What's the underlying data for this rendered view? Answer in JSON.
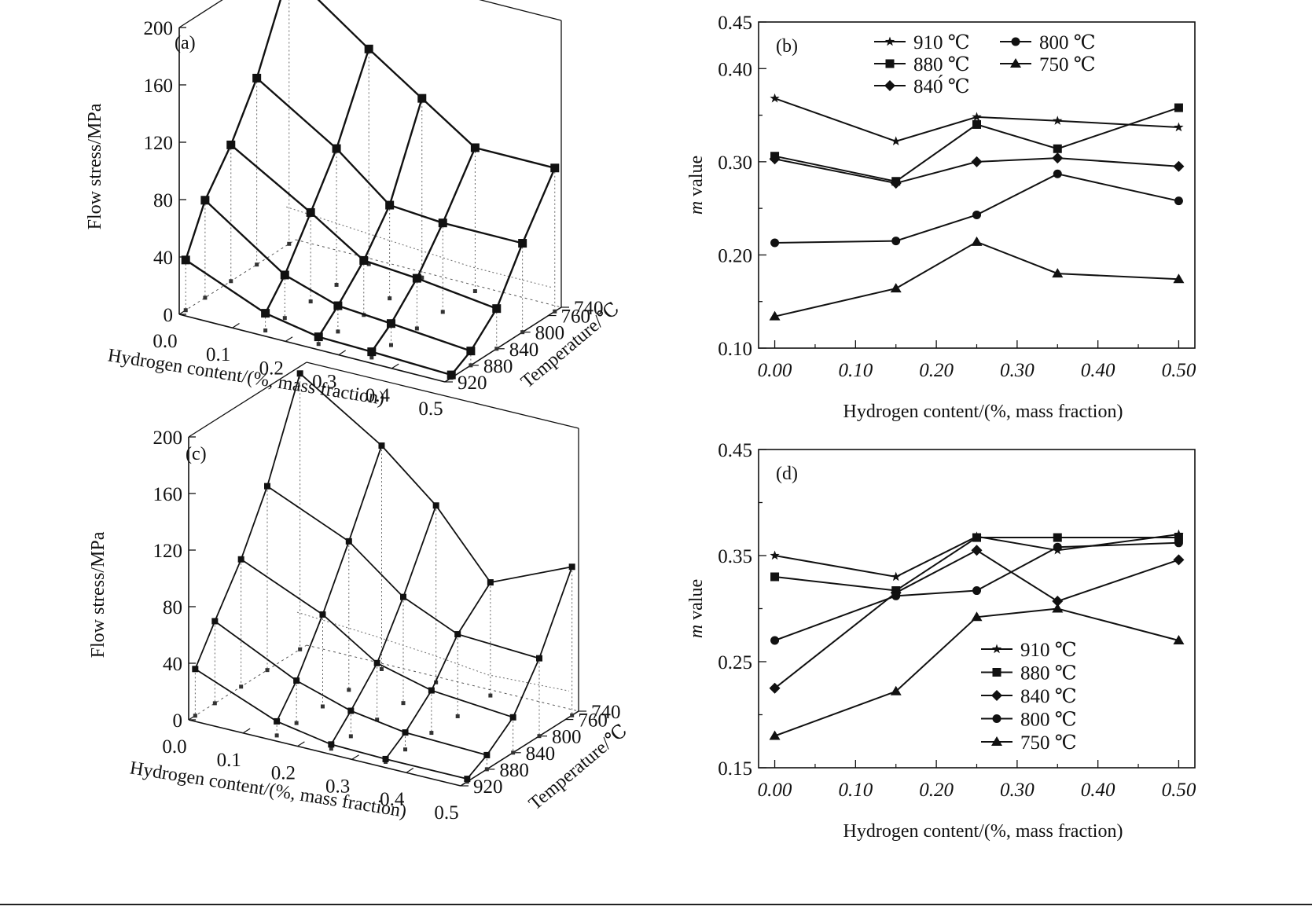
{
  "chart_data": [
    {
      "panel": "(a)",
      "type": "surface3d",
      "zlabel": "Flow stress/MPa",
      "xlabel": "Hydrogen content/(%, mass fraction)",
      "ylabel": "Temperature/℃",
      "x": [
        0,
        0.15,
        0.25,
        0.35,
        0.5
      ],
      "xticks": [
        "0.0",
        "0.1",
        "0.2",
        "0.3",
        "0.4",
        "0.5"
      ],
      "temperatures": [
        750,
        800,
        840,
        880,
        910
      ],
      "yticks": [
        "740",
        "760",
        "800",
        "840",
        "880",
        "920"
      ],
      "zticks": [
        "0",
        "40",
        "80",
        "120",
        "160",
        "200"
      ],
      "zlim": [
        0,
        200
      ],
      "z": [
        [
          190,
          150,
          125,
          100,
          100
        ],
        [
          130,
          95,
          65,
          62,
          62
        ],
        [
          95,
          62,
          38,
          35,
          28
        ],
        [
          68,
          30,
          18,
          15,
          10
        ],
        [
          35,
          12,
          5,
          4,
          2
        ]
      ]
    },
    {
      "panel": "(b)",
      "type": "line",
      "xlabel": "Hydrogen content/(%, mass fraction)",
      "ylabel": "m value",
      "x": [
        0.0,
        0.15,
        0.25,
        0.35,
        0.5
      ],
      "xlim": [
        -0.02,
        0.52
      ],
      "ylim": [
        0.1,
        0.45
      ],
      "xticks": [
        "0.00",
        "0.10",
        "0.20",
        "0.30",
        "0.40",
        "0.50"
      ],
      "yticks": [
        "0.10",
        "0.20",
        "0.30",
        "0.40",
        "0.45"
      ],
      "ytick_values": [
        0.1,
        0.2,
        0.3,
        0.4,
        0.45
      ],
      "legend": [
        {
          "label": "910 ℃",
          "marker": "star"
        },
        {
          "label": "800 ℃",
          "marker": "circle"
        },
        {
          "label": "880 ℃",
          "marker": "square"
        },
        {
          "label": "750 ℃",
          "marker": "triangle"
        },
        {
          "label": "840́ ℃",
          "marker": "diamond"
        }
      ],
      "series": [
        {
          "name": "910 ℃",
          "marker": "star",
          "values": [
            0.368,
            0.322,
            0.348,
            0.344,
            0.337
          ]
        },
        {
          "name": "880 ℃",
          "marker": "square",
          "values": [
            0.306,
            0.279,
            0.34,
            0.314,
            0.358
          ]
        },
        {
          "name": "840́ ℃",
          "marker": "diamond",
          "values": [
            0.303,
            0.277,
            0.3,
            0.304,
            0.295
          ]
        },
        {
          "name": "800 ℃",
          "marker": "circle",
          "values": [
            0.213,
            0.215,
            0.243,
            0.287,
            0.258
          ]
        },
        {
          "name": "750 ℃",
          "marker": "triangle",
          "values": [
            0.134,
            0.164,
            0.214,
            0.18,
            0.174
          ]
        }
      ]
    },
    {
      "panel": "(c)",
      "type": "surface3d",
      "zlabel": "Flow stress/MPa",
      "xlabel": "Hydrogen content/(%, mass fraction)",
      "ylabel": "Temperature/℃",
      "x": [
        0,
        0.15,
        0.25,
        0.35,
        0.5
      ],
      "xticks": [
        "0.0",
        "0.1",
        "0.2",
        "0.3",
        "0.4",
        "0.5"
      ],
      "temperatures": [
        750,
        800,
        840,
        880,
        910
      ],
      "yticks": [
        "740",
        "760",
        "800",
        "840",
        "880",
        "920"
      ],
      "zticks": [
        "0",
        "40",
        "80",
        "120",
        "160",
        "200"
      ],
      "zlim": [
        0,
        200
      ],
      "z": [
        [
          195,
          158,
          125,
          80,
          105
        ],
        [
          130,
          105,
          75,
          58,
          55
        ],
        [
          90,
          65,
          40,
          30,
          25
        ],
        [
          58,
          30,
          18,
          12,
          10
        ],
        [
          33,
          10,
          3,
          2,
          2
        ]
      ]
    },
    {
      "panel": "(d)",
      "type": "line",
      "xlabel": "Hydrogen content/(%, mass fraction)",
      "ylabel": "m value",
      "x": [
        0.0,
        0.15,
        0.25,
        0.35,
        0.5
      ],
      "xlim": [
        -0.02,
        0.52
      ],
      "ylim": [
        0.15,
        0.45
      ],
      "xticks": [
        "0.00",
        "0.10",
        "0.20",
        "0.30",
        "0.40",
        "0.50"
      ],
      "yticks": [
        "0.15",
        "0.25",
        "0.35",
        "0.45"
      ],
      "ytick_values": [
        0.15,
        0.25,
        0.35,
        0.45
      ],
      "legend": [
        {
          "label": "910 ℃",
          "marker": "star"
        },
        {
          "label": "880 ℃",
          "marker": "square"
        },
        {
          "label": "840 ℃",
          "marker": "diamond"
        },
        {
          "label": "800 ℃",
          "marker": "circle"
        },
        {
          "label": "750 ℃",
          "marker": "triangle"
        }
      ],
      "series": [
        {
          "name": "910 ℃",
          "marker": "star",
          "values": [
            0.35,
            0.33,
            0.368,
            0.355,
            0.37
          ]
        },
        {
          "name": "880 ℃",
          "marker": "square",
          "values": [
            0.33,
            0.317,
            0.367,
            0.367,
            0.367
          ]
        },
        {
          "name": "840 ℃",
          "marker": "diamond",
          "values": [
            0.225,
            0.315,
            0.355,
            0.307,
            0.346
          ]
        },
        {
          "name": "800 ℃",
          "marker": "circle",
          "values": [
            0.27,
            0.312,
            0.317,
            0.358,
            0.362
          ]
        },
        {
          "name": "750 ℃",
          "marker": "triangle",
          "values": [
            0.18,
            0.222,
            0.292,
            0.3,
            0.27
          ]
        }
      ]
    }
  ]
}
